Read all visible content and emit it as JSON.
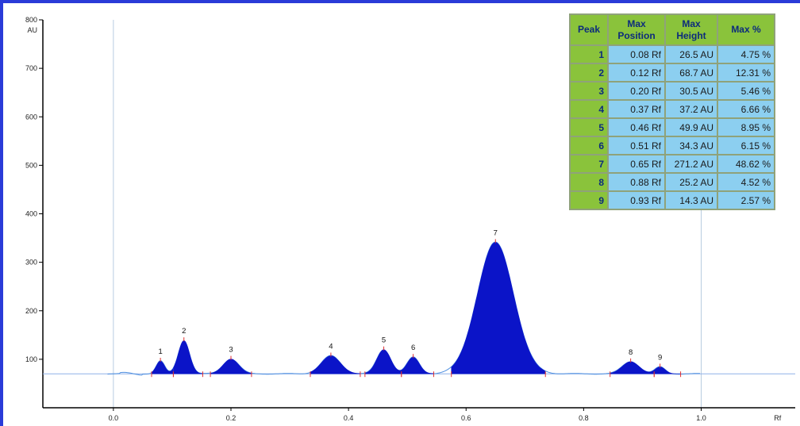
{
  "chart_data": {
    "type": "line",
    "title": "",
    "xlabel": "Rf",
    "ylabel": "AU",
    "xlim": [
      -0.12,
      1.16
    ],
    "ylim": [
      0,
      800
    ],
    "x_ticks": [
      {
        "value": 0.0,
        "label": "0.0"
      },
      {
        "value": 0.2,
        "label": "0.2"
      },
      {
        "value": 0.4,
        "label": "0.4"
      },
      {
        "value": 0.6,
        "label": "0.6"
      },
      {
        "value": 0.8,
        "label": "0.8"
      },
      {
        "value": 1.0,
        "label": "1.0"
      }
    ],
    "y_ticks": [
      {
        "value": 100,
        "label": "100"
      },
      {
        "value": 200,
        "label": "200"
      },
      {
        "value": 300,
        "label": "300"
      },
      {
        "value": 400,
        "label": "400"
      },
      {
        "value": 500,
        "label": "500"
      },
      {
        "value": 600,
        "label": "600"
      },
      {
        "value": 700,
        "label": "700"
      },
      {
        "value": 800,
        "label": "800"
      }
    ],
    "baseline": 70,
    "reference_lines_rf": [
      0.0,
      1.0
    ],
    "peaks": [
      {
        "label": "1",
        "rf": 0.08,
        "height": 26.5,
        "start": 0.065,
        "end": 0.102
      },
      {
        "label": "2",
        "rf": 0.12,
        "height": 68.7,
        "start": 0.102,
        "end": 0.152
      },
      {
        "label": "3",
        "rf": 0.2,
        "height": 30.5,
        "start": 0.165,
        "end": 0.235
      },
      {
        "label": "4",
        "rf": 0.37,
        "height": 37.2,
        "start": 0.335,
        "end": 0.42
      },
      {
        "label": "5",
        "rf": 0.46,
        "height": 49.9,
        "start": 0.428,
        "end": 0.49
      },
      {
        "label": "6",
        "rf": 0.51,
        "height": 34.3,
        "start": 0.49,
        "end": 0.545
      },
      {
        "label": "7",
        "rf": 0.65,
        "height": 271.2,
        "start": 0.575,
        "end": 0.735
      },
      {
        "label": "8",
        "rf": 0.88,
        "height": 25.2,
        "start": 0.845,
        "end": 0.92
      },
      {
        "label": "9",
        "rf": 0.93,
        "height": 14.3,
        "start": 0.92,
        "end": 0.965
      }
    ],
    "colors": {
      "fill": "#0b14c8",
      "trace": "#4e8fe0",
      "baseline": "#8fb0e8",
      "marker": "#e03030",
      "axis": "#000000",
      "reference_line": "#b8cce0"
    }
  },
  "table": {
    "headers": [
      "Peak",
      "Max Position",
      "Max Height",
      "Max %"
    ],
    "rows": [
      [
        "1",
        "0.08 Rf",
        "26.5 AU",
        "4.75 %"
      ],
      [
        "2",
        "0.12 Rf",
        "68.7 AU",
        "12.31 %"
      ],
      [
        "3",
        "0.20 Rf",
        "30.5 AU",
        "5.46 %"
      ],
      [
        "4",
        "0.37 Rf",
        "37.2 AU",
        "6.66 %"
      ],
      [
        "5",
        "0.46 Rf",
        "49.9 AU",
        "8.95 %"
      ],
      [
        "6",
        "0.51 Rf",
        "34.3 AU",
        "6.15 %"
      ],
      [
        "7",
        "0.65 Rf",
        "271.2 AU",
        "48.62 %"
      ],
      [
        "8",
        "0.88 Rf",
        "25.2 AU",
        "4.52 %"
      ],
      [
        "9",
        "0.93 Rf",
        "14.3 AU",
        "2.57 %"
      ]
    ]
  }
}
